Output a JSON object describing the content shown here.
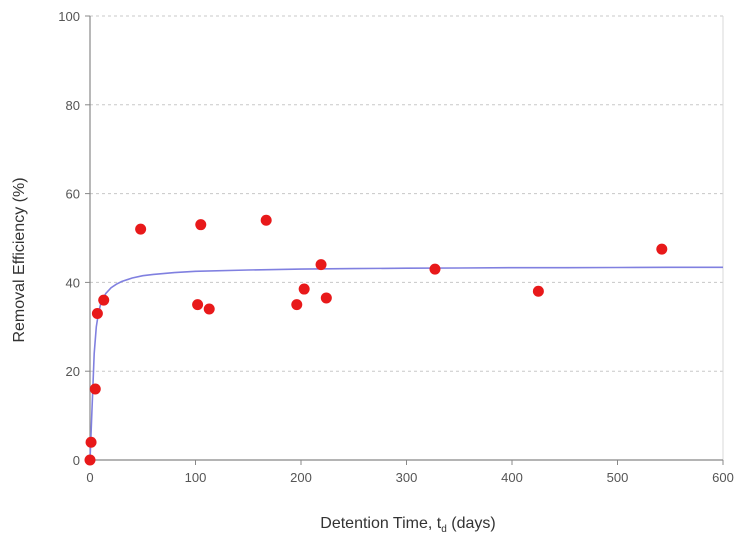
{
  "chart_data": {
    "type": "scatter",
    "xlabel": "Detention Time, t",
    "xlabel_subscript": "d",
    "xlabel_suffix": " (days)",
    "ylabel": "Removal Efficiency (%)",
    "xlim": [
      0,
      600
    ],
    "ylim": [
      0,
      100
    ],
    "x_ticks": [
      0,
      100,
      200,
      300,
      400,
      500,
      600
    ],
    "y_ticks": [
      0,
      20,
      40,
      60,
      80,
      100
    ],
    "grid": "horizontal dashed",
    "legend": "none",
    "colors": {
      "points": "#e8191a",
      "curve": "#8080e0",
      "grid": "#c8c8c8",
      "axis": "#888888"
    },
    "series": [
      {
        "kind": "points",
        "x": [
          0,
          1,
          5,
          7,
          13,
          48,
          102,
          105,
          113,
          167,
          196,
          203,
          219,
          224,
          327,
          425,
          542
        ],
        "y": [
          0,
          4,
          16,
          33,
          36,
          52,
          35,
          53,
          34,
          54,
          35,
          38.5,
          44,
          36.5,
          43,
          38,
          47.5
        ]
      },
      {
        "kind": "fit-curve",
        "x": [
          0,
          2,
          4,
          6,
          8,
          10,
          12,
          15,
          20,
          25,
          30,
          40,
          50,
          60,
          80,
          100,
          150,
          200,
          250,
          300,
          350,
          400,
          450,
          500,
          550,
          600
        ],
        "y": [
          0,
          12,
          24,
          30,
          33,
          35,
          36.2,
          37.5,
          38.8,
          39.6,
          40.2,
          41,
          41.5,
          41.8,
          42.2,
          42.5,
          42.8,
          43,
          43.1,
          43.2,
          43.25,
          43.3,
          43.3,
          43.35,
          43.4,
          43.4
        ]
      }
    ]
  }
}
